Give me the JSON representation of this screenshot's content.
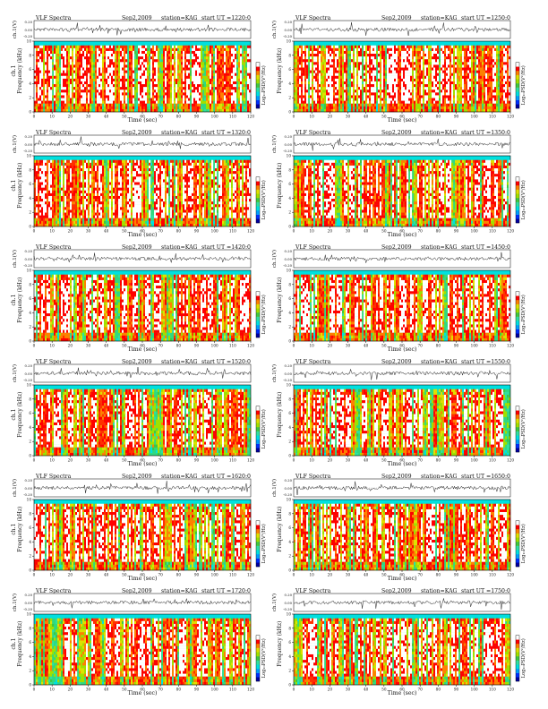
{
  "page": {
    "colors": {
      "colorbar": [
        "#0000a0",
        "#0030ff",
        "#00a0ff",
        "#00e0e0",
        "#30e0a0",
        "#40c840",
        "#a0e000",
        "#e0e000",
        "#ff8000",
        "#ff0000",
        "#ffffff"
      ],
      "trace": "#222222"
    }
  },
  "chart_data": [
    {
      "type": "heatmap",
      "header": {
        "title": "VLF Spectra",
        "date": "Sep2,2009",
        "station": "station=KAG",
        "start_ut": "start UT =1220:0"
      },
      "trace_ylabel": "ch.1(V)",
      "trace_ticks": [
        "0.20",
        "0.00",
        "-0.20"
      ],
      "ylabel": "Frequency (kHz)",
      "ylabel_prefix": "ch.1",
      "xlabel": "Time (sec)",
      "xlim": [
        0,
        120
      ],
      "ylim": [
        0,
        10
      ],
      "x_ticks": [
        0,
        10,
        20,
        30,
        40,
        50,
        60,
        70,
        80,
        90,
        100,
        110,
        120
      ],
      "y_ticks": [
        0,
        2,
        4,
        6,
        8,
        10
      ],
      "colorbar_label": "Log₁₀PSD(V²/Hz)"
    },
    {
      "type": "heatmap",
      "header": {
        "title": "VLF Spectra",
        "date": "Sep2,2009",
        "station": "station=KAG",
        "start_ut": "start UT =1250:0"
      },
      "trace_ylabel": "ch.1(V)",
      "trace_ticks": [
        "0.20",
        "0.00",
        "-0.20"
      ],
      "ylabel": "Frequency (kHz)",
      "ylabel_prefix": "",
      "xlabel": "Time (sec)",
      "xlim": [
        0,
        120
      ],
      "ylim": [
        0,
        10
      ],
      "x_ticks": [
        0,
        10,
        20,
        30,
        40,
        50,
        60,
        70,
        80,
        90,
        100,
        110,
        120
      ],
      "y_ticks": [
        0,
        2,
        4,
        6,
        8,
        10
      ],
      "colorbar_label": "Log₁₀PSD(V²/Hz)"
    },
    {
      "type": "heatmap",
      "header": {
        "title": "VLF Spectra",
        "date": "Sep2,2009",
        "station": "station=KAG",
        "start_ut": "start UT =1320:0"
      },
      "trace_ylabel": "ch.1(V)",
      "trace_ticks": [
        "0.20",
        "0.00",
        "-0.20"
      ],
      "ylabel": "Frequency (kHz)",
      "ylabel_prefix": "ch.1",
      "xlabel": "Time (sec)",
      "xlim": [
        0,
        120
      ],
      "ylim": [
        0,
        10
      ],
      "x_ticks": [
        0,
        10,
        20,
        30,
        40,
        50,
        60,
        70,
        80,
        90,
        100,
        110,
        120
      ],
      "y_ticks": [
        0,
        2,
        4,
        6,
        8,
        10
      ],
      "colorbar_label": "Log₁₀PSD(V²/Hz)"
    },
    {
      "type": "heatmap",
      "header": {
        "title": "VLF Spectra",
        "date": "Sep2,2009",
        "station": "station=KAG",
        "start_ut": "start UT =1350:0"
      },
      "trace_ylabel": "ch.1(V)",
      "trace_ticks": [
        "0.20",
        "0.00",
        "-0.20"
      ],
      "ylabel": "Frequency (kHz)",
      "ylabel_prefix": "",
      "xlabel": "Time (sec)",
      "xlim": [
        0,
        120
      ],
      "ylim": [
        0,
        10
      ],
      "x_ticks": [
        0,
        10,
        20,
        30,
        40,
        50,
        60,
        70,
        80,
        90,
        100,
        110,
        120
      ],
      "y_ticks": [
        0,
        2,
        4,
        6,
        8,
        10
      ],
      "colorbar_label": "Log₁₀PSD(V²/Hz)"
    },
    {
      "type": "heatmap",
      "header": {
        "title": "VLF Spectra",
        "date": "Sep2,2009",
        "station": "station=KAG",
        "start_ut": "start UT =1420:0"
      },
      "trace_ylabel": "ch.1(V)",
      "trace_ticks": [
        "0.20",
        "0.00",
        "-0.20"
      ],
      "ylabel": "Frequency (kHz)",
      "ylabel_prefix": "ch.1",
      "xlabel": "Time (sec)",
      "xlim": [
        0,
        120
      ],
      "ylim": [
        0,
        10
      ],
      "x_ticks": [
        0,
        10,
        20,
        30,
        40,
        50,
        60,
        70,
        80,
        90,
        100,
        110,
        120
      ],
      "y_ticks": [
        0,
        2,
        4,
        6,
        8,
        10
      ],
      "colorbar_label": "Log₁₀PSD(V²/Hz)"
    },
    {
      "type": "heatmap",
      "header": {
        "title": "VLF Spectra",
        "date": "Sep2,2009",
        "station": "station=KAG",
        "start_ut": "start UT =1450:0"
      },
      "trace_ylabel": "ch.1(V)",
      "trace_ticks": [
        "0.20",
        "0.00",
        "-0.20"
      ],
      "ylabel": "Frequency (kHz)",
      "ylabel_prefix": "",
      "xlabel": "Time (sec)",
      "xlim": [
        0,
        120
      ],
      "ylim": [
        0,
        10
      ],
      "x_ticks": [
        0,
        10,
        20,
        30,
        40,
        50,
        60,
        70,
        80,
        90,
        100,
        110,
        120
      ],
      "y_ticks": [
        0,
        2,
        4,
        6,
        8,
        10
      ],
      "colorbar_label": "Log₁₀PSD(V²/Hz)"
    },
    {
      "type": "heatmap",
      "header": {
        "title": "VLF Spectra",
        "date": "Sep2,2009",
        "station": "station=KAG",
        "start_ut": "start UT =1520:0"
      },
      "trace_ylabel": "ch.1(V)",
      "trace_ticks": [
        "0.20",
        "0.00",
        "-0.20"
      ],
      "ylabel": "Frequency (kHz)",
      "ylabel_prefix": "ch.1",
      "xlabel": "Time (sec)",
      "xlim": [
        0,
        120
      ],
      "ylim": [
        0,
        10
      ],
      "x_ticks": [
        0,
        10,
        20,
        30,
        40,
        50,
        60,
        70,
        80,
        90,
        100,
        110,
        120
      ],
      "y_ticks": [
        0,
        2,
        4,
        6,
        8,
        10
      ],
      "colorbar_label": "Log₁₀PSD(V²/Hz)"
    },
    {
      "type": "heatmap",
      "header": {
        "title": "VLF Spectra",
        "date": "Sep2,2009",
        "station": "station=KAG",
        "start_ut": "start UT =1550:0"
      },
      "trace_ylabel": "ch.1(V)",
      "trace_ticks": [
        "0.20",
        "0.00",
        "-0.20"
      ],
      "ylabel": "Frequency (kHz)",
      "ylabel_prefix": "",
      "xlabel": "Time (sec)",
      "xlim": [
        0,
        120
      ],
      "ylim": [
        0,
        10
      ],
      "x_ticks": [
        0,
        10,
        20,
        30,
        40,
        50,
        60,
        70,
        80,
        90,
        100,
        110,
        120
      ],
      "y_ticks": [
        0,
        2,
        4,
        6,
        8,
        10
      ],
      "colorbar_label": "Log₁₀PSD(V²/Hz)"
    },
    {
      "type": "heatmap",
      "header": {
        "title": "VLF Spectra",
        "date": "Sep2,2009",
        "station": "station=KAG",
        "start_ut": "start UT =1620:0"
      },
      "trace_ylabel": "ch.1(V)",
      "trace_ticks": [
        "0.20",
        "0.00",
        "-0.20"
      ],
      "ylabel": "Frequency (kHz)",
      "ylabel_prefix": "ch.1",
      "xlabel": "Time (sec)",
      "xlim": [
        0,
        120
      ],
      "ylim": [
        0,
        10
      ],
      "x_ticks": [
        0,
        10,
        20,
        30,
        40,
        50,
        60,
        70,
        80,
        90,
        100,
        110,
        120
      ],
      "y_ticks": [
        0,
        2,
        4,
        6,
        8,
        10
      ],
      "colorbar_label": "Log₁₀PSD(V²/Hz)"
    },
    {
      "type": "heatmap",
      "header": {
        "title": "VLF Spectra",
        "date": "Sep2,2009",
        "station": "station=KAG",
        "start_ut": "start UT =1650:0"
      },
      "trace_ylabel": "ch.1(V)",
      "trace_ticks": [
        "0.20",
        "0.00",
        "-0.20"
      ],
      "ylabel": "Frequency (kHz)",
      "ylabel_prefix": "",
      "xlabel": "Time (sec)",
      "xlim": [
        0,
        120
      ],
      "ylim": [
        0,
        10
      ],
      "x_ticks": [
        0,
        10,
        20,
        30,
        40,
        50,
        60,
        70,
        80,
        90,
        100,
        110,
        120
      ],
      "y_ticks": [
        0,
        2,
        4,
        6,
        8,
        10
      ],
      "colorbar_label": "Log₁₀PSD(V²/Hz)"
    },
    {
      "type": "heatmap",
      "header": {
        "title": "VLF Spectra",
        "date": "Sep2,2009",
        "station": "station=KAG",
        "start_ut": "start UT =1720:0"
      },
      "trace_ylabel": "ch.1(V)",
      "trace_ticks": [
        "0.20",
        "0.00",
        "-0.20"
      ],
      "ylabel": "Frequency (kHz)",
      "ylabel_prefix": "ch.1",
      "xlabel": "Time (sec)",
      "xlim": [
        0,
        120
      ],
      "ylim": [
        0,
        10
      ],
      "x_ticks": [
        0,
        10,
        20,
        30,
        40,
        50,
        60,
        70,
        80,
        90,
        100,
        110,
        120
      ],
      "y_ticks": [
        0,
        2,
        4,
        6,
        8,
        10
      ],
      "colorbar_label": "Log₁₀PSD(V²/Hz)"
    },
    {
      "type": "heatmap",
      "header": {
        "title": "VLF Spectra",
        "date": "Sep2,2009",
        "station": "station=KAG",
        "start_ut": "start UT =1750:0"
      },
      "trace_ylabel": "ch.1(V)",
      "trace_ticks": [
        "0.20",
        "0.00",
        "-0.20"
      ],
      "ylabel": "Frequency (kHz)",
      "ylabel_prefix": "",
      "xlabel": "Time (sec)",
      "xlim": [
        0,
        120
      ],
      "ylim": [
        0,
        10
      ],
      "x_ticks": [
        0,
        10,
        20,
        30,
        40,
        50,
        60,
        70,
        80,
        90,
        100,
        110,
        120
      ],
      "y_ticks": [
        0,
        2,
        4,
        6,
        8,
        10
      ],
      "colorbar_label": "Log₁₀PSD(V²/Hz)"
    }
  ]
}
